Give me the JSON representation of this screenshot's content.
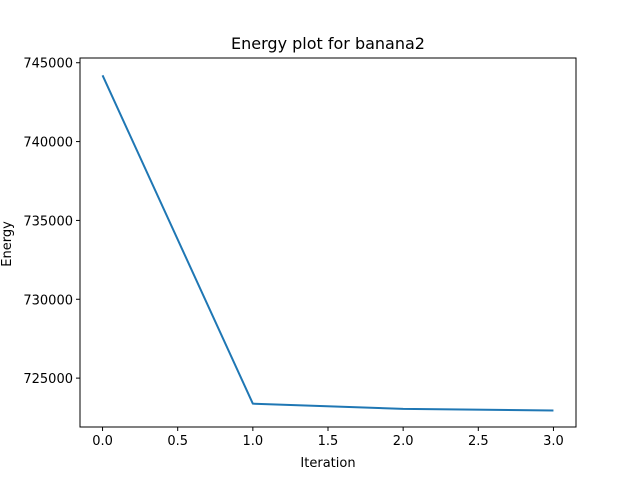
{
  "chart_data": {
    "type": "line",
    "title": "Energy plot for banana2",
    "xlabel": "Iteration",
    "ylabel": "Energy",
    "x": [
      0,
      1,
      2,
      3
    ],
    "series": [
      {
        "values": [
          744200,
          723380,
          723050,
          722950
        ],
        "color": "#1f77b4"
      }
    ],
    "xlim": [
      -0.15,
      3.15
    ],
    "ylim": [
      721900,
      745300
    ],
    "xticks": [
      0.0,
      0.5,
      1.0,
      1.5,
      2.0,
      2.5,
      3.0
    ],
    "xtick_labels": [
      "0.0",
      "0.5",
      "1.0",
      "1.5",
      "2.0",
      "2.5",
      "3.0"
    ],
    "yticks": [
      725000,
      730000,
      735000,
      740000,
      745000
    ],
    "ytick_labels": [
      "725000",
      "730000",
      "735000",
      "740000",
      "745000"
    ],
    "grid": false,
    "legend": false
  }
}
